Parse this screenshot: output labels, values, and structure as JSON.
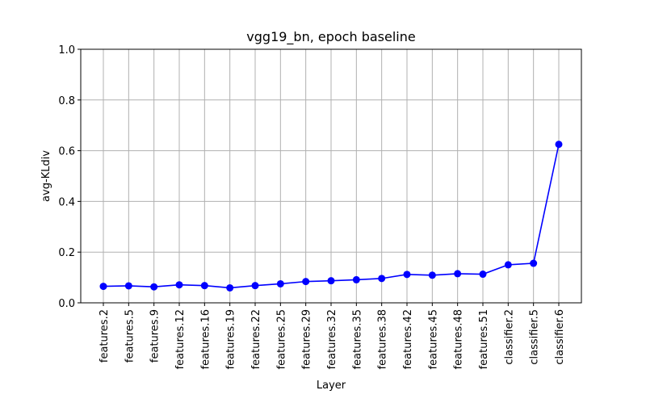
{
  "chart_data": {
    "type": "line",
    "title": "vgg19_bn, epoch baseline",
    "xlabel": "Layer",
    "ylabel": "avg-KLdiv",
    "ylim": [
      0.0,
      1.0
    ],
    "yticks": [
      "0.0",
      "0.2",
      "0.4",
      "0.6",
      "0.8",
      "1.0"
    ],
    "grid": true,
    "categories": [
      "features.2",
      "features.5",
      "features.9",
      "features.12",
      "features.16",
      "features.19",
      "features.22",
      "features.25",
      "features.29",
      "features.32",
      "features.35",
      "features.38",
      "features.42",
      "features.45",
      "features.48",
      "features.51",
      "classifier.2",
      "classifier.5",
      "classifier.6"
    ],
    "series": [
      {
        "color": "#0000ff",
        "marker": "circle",
        "values": [
          0.065,
          0.067,
          0.063,
          0.071,
          0.068,
          0.059,
          0.068,
          0.075,
          0.084,
          0.087,
          0.091,
          0.096,
          0.112,
          0.109,
          0.115,
          0.113,
          0.15,
          0.156,
          0.625
        ]
      }
    ]
  }
}
